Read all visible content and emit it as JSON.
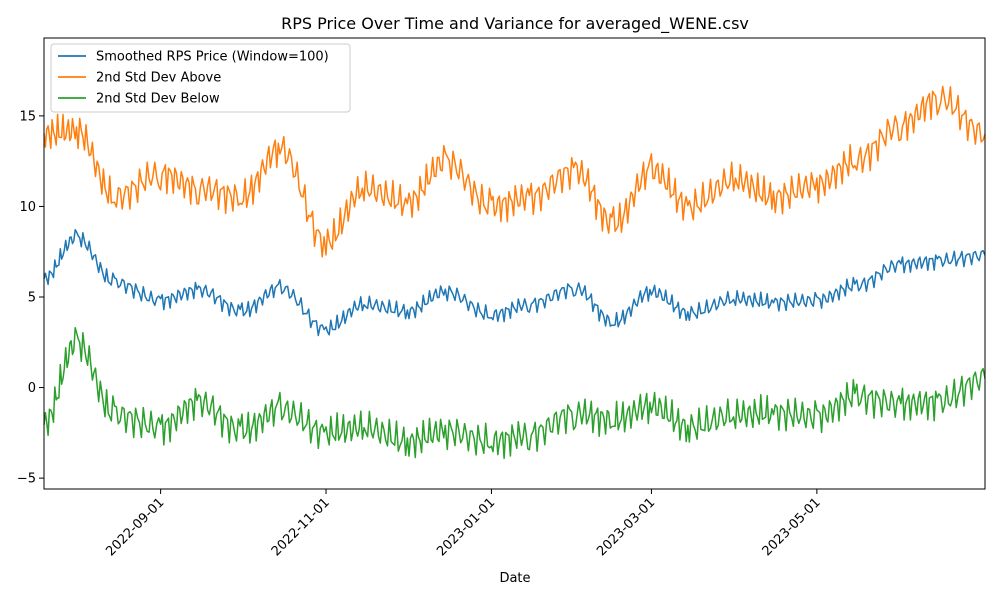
{
  "chart_data": {
    "type": "line",
    "title": "RPS Price Over Time and Variance for averaged_WENE.csv",
    "xlabel": "Date",
    "ylabel": "",
    "xlim": [
      "2022-07-20",
      "2023-07-02"
    ],
    "ylim": [
      -5.6,
      19.3
    ],
    "x_ticks": [
      "2022-09-01",
      "2022-11-01",
      "2023-01-01",
      "2023-03-01",
      "2023-05-01"
    ],
    "y_ticks": [
      -5,
      0,
      5,
      10,
      15
    ],
    "y_tick_labels": [
      "−5",
      "0",
      "5",
      "10",
      "15"
    ],
    "grid": false,
    "legend_position": "top-left",
    "x": [
      "2022-07-20",
      "2022-08-01",
      "2022-08-15",
      "2022-09-01",
      "2022-09-15",
      "2022-10-01",
      "2022-10-15",
      "2022-11-01",
      "2022-11-15",
      "2022-12-01",
      "2022-12-15",
      "2023-01-01",
      "2023-01-15",
      "2023-02-01",
      "2023-02-15",
      "2023-03-01",
      "2023-03-15",
      "2023-04-01",
      "2023-04-15",
      "2023-05-01",
      "2023-05-15",
      "2023-06-01",
      "2023-06-15",
      "2023-07-02"
    ],
    "series": [
      {
        "name": "Smoothed RPS Price (Window=100)",
        "color": "#1f77b4",
        "values": [
          6.0,
          8.3,
          5.8,
          4.8,
          5.4,
          4.2,
          5.5,
          3.2,
          4.6,
          4.2,
          5.3,
          4.0,
          4.6,
          5.5,
          3.6,
          5.3,
          4.1,
          4.9,
          4.7,
          4.8,
          5.6,
          6.8,
          7.0,
          7.3
        ]
      },
      {
        "name": "2nd Std Dev Above",
        "color": "#ff7f0e",
        "values": [
          14.0,
          14.2,
          10.5,
          11.8,
          11.0,
          10.5,
          13.2,
          8.0,
          11.0,
          10.2,
          12.5,
          10.0,
          10.5,
          12.0,
          9.0,
          12.0,
          10.0,
          11.5,
          10.5,
          11.2,
          12.5,
          14.5,
          16.0,
          14.0
        ]
      },
      {
        "name": "2nd Std Dev Below",
        "color": "#2ca02c",
        "values": [
          -2.0,
          2.5,
          -1.5,
          -2.2,
          -0.8,
          -2.4,
          -1.2,
          -2.5,
          -2.2,
          -3.0,
          -2.4,
          -3.0,
          -2.6,
          -1.4,
          -1.8,
          -1.0,
          -2.2,
          -1.5,
          -1.4,
          -1.6,
          -0.5,
          -0.9,
          -0.8,
          0.5
        ]
      }
    ]
  }
}
